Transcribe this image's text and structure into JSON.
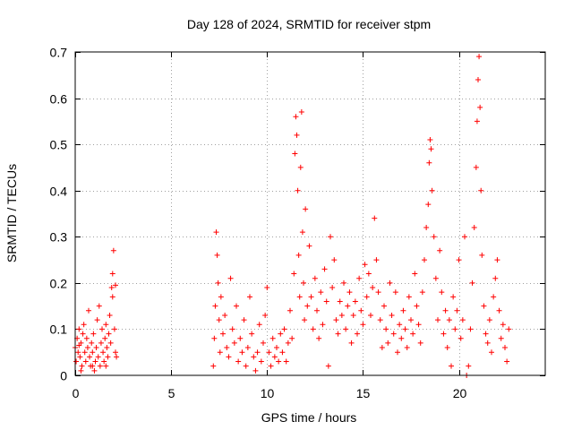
{
  "chart_data": {
    "type": "scatter",
    "title": "Day 128 of 2024, SRMTID for receiver stpm",
    "xlabel": "GPS time / hours",
    "ylabel": "SRMTID / TECUs",
    "xlim": [
      0,
      24.5
    ],
    "ylim": [
      0,
      0.7
    ],
    "xticks": [
      0,
      5,
      10,
      15,
      20
    ],
    "xtick_labels": [
      "0",
      "5",
      "10",
      "15",
      "20"
    ],
    "yticks": [
      0,
      0.1,
      0.2,
      0.3,
      0.4,
      0.5,
      0.6,
      0.7
    ],
    "ytick_labels": [
      "0",
      "0.1",
      "0.2",
      "0.3",
      "0.4",
      "0.5",
      "0.6",
      "0.7"
    ],
    "grid": true,
    "marker": "+",
    "color": "#ff0000",
    "series": [
      {
        "name": "SRMTID",
        "points": [
          [
            0.0,
            0.06
          ],
          [
            0.05,
            0.03
          ],
          [
            0.1,
            0.08
          ],
          [
            0.15,
            0.05
          ],
          [
            0.2,
            0.1
          ],
          [
            0.25,
            0.04
          ],
          [
            0.3,
            0.07
          ],
          [
            0.35,
            0.02
          ],
          [
            0.4,
            0.09
          ],
          [
            0.45,
            0.11
          ],
          [
            0.5,
            0.05
          ],
          [
            0.55,
            0.03
          ],
          [
            0.6,
            0.08
          ],
          [
            0.65,
            0.06
          ],
          [
            0.7,
            0.14
          ],
          [
            0.75,
            0.04
          ],
          [
            0.8,
            0.02
          ],
          [
            0.85,
            0.07
          ],
          [
            0.9,
            0.05
          ],
          [
            0.95,
            0.09
          ],
          [
            1.0,
            0.01
          ],
          [
            1.05,
            0.03
          ],
          [
            1.1,
            0.06
          ],
          [
            1.15,
            0.12
          ],
          [
            1.2,
            0.04
          ],
          [
            1.25,
            0.15
          ],
          [
            1.3,
            0.02
          ],
          [
            1.35,
            0.07
          ],
          [
            1.4,
            0.1
          ],
          [
            1.45,
            0.05
          ],
          [
            1.5,
            0.03
          ],
          [
            1.55,
            0.08
          ],
          [
            1.6,
            0.11
          ],
          [
            1.65,
            0.06
          ],
          [
            1.7,
            0.04
          ],
          [
            1.75,
            0.09
          ],
          [
            1.8,
            0.13
          ],
          [
            1.85,
            0.07
          ],
          [
            1.9,
            0.19
          ],
          [
            1.95,
            0.22
          ],
          [
            2.0,
            0.27
          ],
          [
            2.05,
            0.1
          ],
          [
            2.1,
            0.05
          ],
          [
            2.15,
            0.04
          ],
          [
            0.3,
            0.01
          ],
          [
            0.9,
            0.02
          ],
          [
            1.6,
            0.02
          ],
          [
            2.1,
            0.195
          ],
          [
            1.95,
            0.17
          ],
          [
            0.2,
            0.065
          ],
          [
            7.2,
            0.02
          ],
          [
            7.25,
            0.08
          ],
          [
            7.3,
            0.15
          ],
          [
            7.35,
            0.31
          ],
          [
            7.4,
            0.26
          ],
          [
            7.45,
            0.2
          ],
          [
            7.5,
            0.12
          ],
          [
            7.55,
            0.05
          ],
          [
            7.6,
            0.17
          ],
          [
            7.7,
            0.09
          ],
          [
            7.8,
            0.13
          ],
          [
            7.9,
            0.06
          ],
          [
            8.0,
            0.04
          ],
          [
            8.1,
            0.21
          ],
          [
            8.2,
            0.1
          ],
          [
            8.3,
            0.07
          ],
          [
            8.4,
            0.15
          ],
          [
            8.5,
            0.03
          ],
          [
            8.6,
            0.08
          ],
          [
            8.7,
            0.05
          ],
          [
            8.8,
            0.12
          ],
          [
            8.9,
            0.02
          ],
          [
            9.0,
            0.06
          ],
          [
            9.1,
            0.17
          ],
          [
            9.2,
            0.09
          ],
          [
            9.3,
            0.04
          ],
          [
            9.4,
            0.01
          ],
          [
            9.5,
            0.05
          ],
          [
            9.6,
            0.11
          ],
          [
            9.7,
            0.03
          ],
          [
            9.8,
            0.07
          ],
          [
            9.9,
            0.13
          ],
          [
            10.0,
            0.19
          ],
          [
            10.1,
            0.05
          ],
          [
            10.2,
            0.02
          ],
          [
            10.3,
            0.08
          ],
          [
            10.4,
            0.04
          ],
          [
            10.5,
            0.06
          ],
          [
            10.6,
            0.03
          ],
          [
            10.7,
            0.09
          ],
          [
            10.8,
            0.05
          ],
          [
            10.9,
            0.1
          ],
          [
            11.0,
            0.03
          ],
          [
            11.1,
            0.07
          ],
          [
            11.2,
            0.14
          ],
          [
            11.3,
            0.08
          ],
          [
            11.4,
            0.22
          ],
          [
            11.45,
            0.48
          ],
          [
            11.5,
            0.56
          ],
          [
            11.55,
            0.52
          ],
          [
            11.6,
            0.4
          ],
          [
            11.65,
            0.26
          ],
          [
            11.7,
            0.17
          ],
          [
            11.75,
            0.45
          ],
          [
            11.8,
            0.57
          ],
          [
            11.85,
            0.31
          ],
          [
            11.9,
            0.2
          ],
          [
            11.95,
            0.12
          ],
          [
            12.0,
            0.36
          ],
          [
            12.1,
            0.15
          ],
          [
            12.2,
            0.28
          ],
          [
            12.3,
            0.17
          ],
          [
            12.4,
            0.1
          ],
          [
            12.5,
            0.21
          ],
          [
            12.6,
            0.14
          ],
          [
            12.7,
            0.08
          ],
          [
            12.8,
            0.18
          ],
          [
            12.9,
            0.11
          ],
          [
            13.0,
            0.23
          ],
          [
            13.1,
            0.16
          ],
          [
            13.2,
            0.02
          ],
          [
            13.3,
            0.3
          ],
          [
            13.4,
            0.19
          ],
          [
            13.5,
            0.25
          ],
          [
            13.6,
            0.12
          ],
          [
            13.7,
            0.09
          ],
          [
            13.8,
            0.16
          ],
          [
            13.9,
            0.13
          ],
          [
            14.0,
            0.2
          ],
          [
            14.1,
            0.1
          ],
          [
            14.2,
            0.15
          ],
          [
            14.3,
            0.18
          ],
          [
            14.4,
            0.07
          ],
          [
            14.5,
            0.13
          ],
          [
            14.6,
            0.16
          ],
          [
            14.7,
            0.09
          ],
          [
            14.8,
            0.21
          ],
          [
            14.9,
            0.14
          ],
          [
            15.0,
            0.11
          ],
          [
            15.1,
            0.24
          ],
          [
            15.2,
            0.17
          ],
          [
            15.3,
            0.22
          ],
          [
            15.4,
            0.13
          ],
          [
            15.5,
            0.19
          ],
          [
            15.6,
            0.34
          ],
          [
            15.7,
            0.25
          ],
          [
            15.8,
            0.18
          ],
          [
            15.9,
            0.12
          ],
          [
            16.0,
            0.06
          ],
          [
            16.1,
            0.15
          ],
          [
            16.2,
            0.1
          ],
          [
            16.3,
            0.07
          ],
          [
            16.4,
            0.2
          ],
          [
            16.5,
            0.13
          ],
          [
            16.6,
            0.09
          ],
          [
            16.7,
            0.18
          ],
          [
            16.8,
            0.05
          ],
          [
            16.9,
            0.11
          ],
          [
            17.0,
            0.08
          ],
          [
            17.1,
            0.14
          ],
          [
            17.2,
            0.1
          ],
          [
            17.3,
            0.06
          ],
          [
            17.4,
            0.17
          ],
          [
            17.5,
            0.12
          ],
          [
            17.6,
            0.09
          ],
          [
            17.7,
            0.22
          ],
          [
            17.8,
            0.15
          ],
          [
            17.9,
            0.11
          ],
          [
            18.0,
            0.07
          ],
          [
            18.1,
            0.18
          ],
          [
            18.2,
            0.25
          ],
          [
            18.3,
            0.32
          ],
          [
            18.4,
            0.37
          ],
          [
            18.45,
            0.46
          ],
          [
            18.5,
            0.51
          ],
          [
            18.55,
            0.49
          ],
          [
            18.6,
            0.4
          ],
          [
            18.7,
            0.3
          ],
          [
            18.8,
            0.21
          ],
          [
            18.9,
            0.12
          ],
          [
            19.0,
            0.27
          ],
          [
            19.1,
            0.18
          ],
          [
            19.2,
            0.09
          ],
          [
            19.3,
            0.14
          ],
          [
            19.4,
            0.06
          ],
          [
            19.5,
            0.12
          ],
          [
            19.6,
            0.02
          ],
          [
            19.7,
            0.17
          ],
          [
            19.8,
            0.1
          ],
          [
            19.9,
            0.14
          ],
          [
            20.0,
            0.25
          ],
          [
            20.1,
            0.08
          ],
          [
            20.2,
            0.12
          ],
          [
            20.3,
            0.3
          ],
          [
            20.4,
            0.0
          ],
          [
            20.5,
            0.02
          ],
          [
            20.6,
            0.1
          ],
          [
            20.7,
            0.2
          ],
          [
            20.8,
            0.32
          ],
          [
            20.9,
            0.45
          ],
          [
            20.95,
            0.55
          ],
          [
            21.0,
            0.64
          ],
          [
            21.05,
            0.69
          ],
          [
            21.1,
            0.58
          ],
          [
            21.15,
            0.4
          ],
          [
            21.2,
            0.26
          ],
          [
            21.3,
            0.15
          ],
          [
            21.4,
            0.09
          ],
          [
            21.5,
            0.07
          ],
          [
            21.6,
            0.12
          ],
          [
            21.7,
            0.05
          ],
          [
            21.8,
            0.17
          ],
          [
            21.9,
            0.21
          ],
          [
            22.0,
            0.25
          ],
          [
            22.1,
            0.14
          ],
          [
            22.2,
            0.08
          ],
          [
            22.3,
            0.11
          ],
          [
            22.4,
            0.06
          ],
          [
            22.5,
            0.03
          ],
          [
            22.6,
            0.1
          ]
        ]
      }
    ]
  }
}
